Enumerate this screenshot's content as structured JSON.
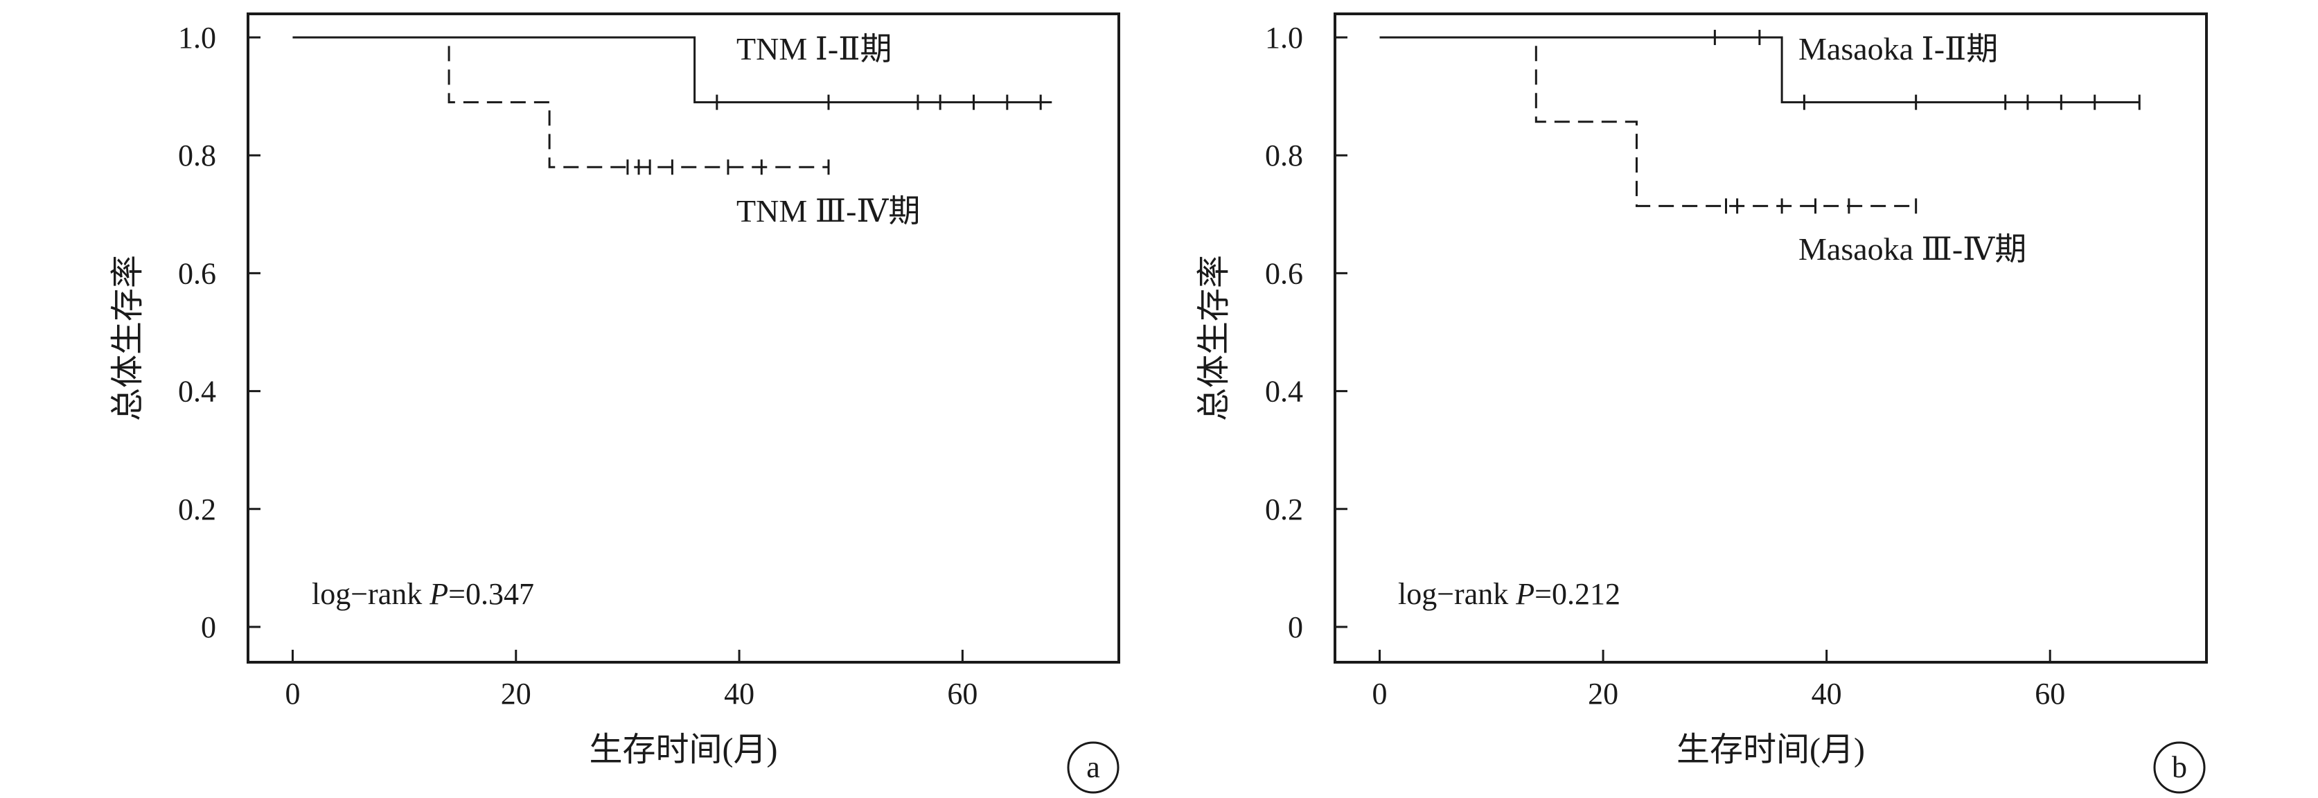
{
  "chart_data": [
    {
      "type": "line",
      "subtype": "kaplan-meier",
      "panel_label": "a",
      "xlabel": "生存时间(月)",
      "ylabel": "总体生存率",
      "xlim": [
        -4,
        74
      ],
      "ylim": [
        -0.06,
        1.04
      ],
      "xticks": [
        0,
        20,
        40,
        60
      ],
      "xtick_labels": [
        "0",
        "20",
        "40",
        "60"
      ],
      "yticks": [
        0,
        0.2,
        0.4,
        0.6,
        0.8,
        1.0
      ],
      "ytick_labels": [
        "0",
        "0.2",
        "0.4",
        "0.6",
        "0.8",
        "1.0"
      ],
      "annotation": {
        "prefix": "log−rank ",
        "p_symbol": "P",
        "suffix": "=0.347"
      },
      "series": [
        {
          "name": "TNM Ⅰ-Ⅱ期",
          "line_style": "solid",
          "steps": [
            [
              0,
              1.0
            ],
            [
              36,
              0.89
            ]
          ],
          "end_x": 68,
          "censored": [
            [
              38,
              0.89
            ],
            [
              48,
              0.89
            ],
            [
              56,
              0.89
            ],
            [
              58,
              0.89
            ],
            [
              61,
              0.89
            ],
            [
              64,
              0.89
            ],
            [
              67,
              0.89
            ]
          ]
        },
        {
          "name": "TNM Ⅲ-Ⅳ期",
          "line_style": "dashed",
          "steps": [
            [
              0,
              1.0
            ],
            [
              14,
              0.89
            ],
            [
              23,
              0.78
            ]
          ],
          "end_x": 48,
          "censored": [
            [
              30,
              0.78
            ],
            [
              31,
              0.78
            ],
            [
              32,
              0.78
            ],
            [
              34,
              0.78
            ],
            [
              39,
              0.78
            ],
            [
              42,
              0.78
            ],
            [
              48,
              0.78
            ]
          ]
        }
      ]
    },
    {
      "type": "line",
      "subtype": "kaplan-meier",
      "panel_label": "b",
      "xlabel": "生存时间(月)",
      "ylabel": "总体生存率",
      "xlim": [
        -4,
        74
      ],
      "ylim": [
        -0.06,
        1.04
      ],
      "xticks": [
        0,
        20,
        40,
        60
      ],
      "xtick_labels": [
        "0",
        "20",
        "40",
        "60"
      ],
      "yticks": [
        0,
        0.2,
        0.4,
        0.6,
        0.8,
        1.0
      ],
      "ytick_labels": [
        "0",
        "0.2",
        "0.4",
        "0.6",
        "0.8",
        "1.0"
      ],
      "annotation": {
        "prefix": "log−rank ",
        "p_symbol": "P",
        "suffix": "=0.212"
      },
      "series": [
        {
          "name": "Masaoka Ⅰ-Ⅱ期",
          "line_style": "solid",
          "steps": [
            [
              0,
              1.0
            ],
            [
              36,
              0.89
            ]
          ],
          "end_x": 68,
          "censored": [
            [
              30,
              1.0
            ],
            [
              34,
              1.0
            ],
            [
              38,
              0.89
            ],
            [
              48,
              0.89
            ],
            [
              56,
              0.89
            ],
            [
              58,
              0.89
            ],
            [
              61,
              0.89
            ],
            [
              64,
              0.89
            ],
            [
              68,
              0.89
            ]
          ]
        },
        {
          "name": "Masaoka Ⅲ-Ⅳ期",
          "line_style": "dashed",
          "steps": [
            [
              0,
              1.0
            ],
            [
              14,
              0.857
            ],
            [
              23,
              0.714
            ]
          ],
          "end_x": 48,
          "censored": [
            [
              31,
              0.714
            ],
            [
              32,
              0.714
            ],
            [
              36,
              0.714
            ],
            [
              39,
              0.714
            ],
            [
              42,
              0.714
            ],
            [
              48,
              0.714
            ]
          ]
        }
      ]
    }
  ]
}
